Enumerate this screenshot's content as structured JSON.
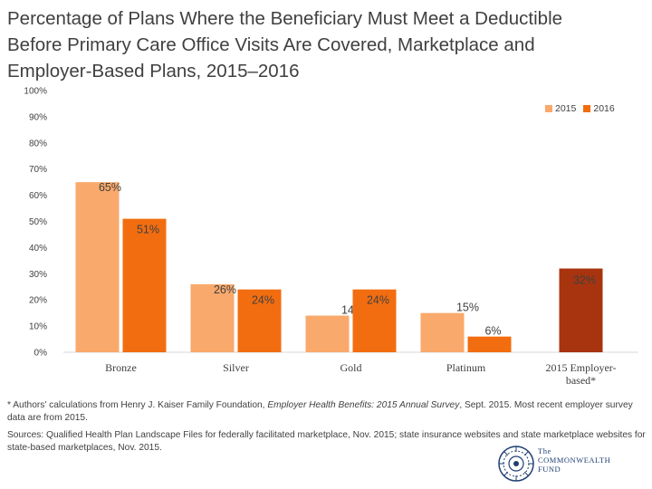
{
  "title": {
    "lines": [
      "Percentage of Plans Where the Beneficiary Must Meet a Deductible",
      "Before Primary Care Office Visits Are Covered, Marketplace and",
      "Employer-Based Plans, 2015–2016"
    ]
  },
  "chart_data": {
    "type": "bar",
    "categories": [
      "Bronze",
      "Silver",
      "Gold",
      "Platinum",
      "2015 Employer-based*"
    ],
    "series": [
      {
        "name": "2015",
        "values": [
          65,
          26,
          14,
          15,
          null
        ],
        "color": "#f9a96b"
      },
      {
        "name": "2016",
        "values": [
          51,
          24,
          24,
          6,
          null
        ],
        "color": "#f26d10"
      },
      {
        "name": "",
        "values": [
          null,
          null,
          null,
          null,
          32
        ],
        "color": "#a8340f"
      }
    ],
    "data_labels": [
      [
        "65%",
        "26%",
        "14%",
        "15%",
        null
      ],
      [
        "51%",
        "24%",
        "24%",
        "6%",
        null
      ],
      [
        null,
        null,
        null,
        null,
        "32%"
      ]
    ],
    "category_labels": [
      [
        "Bronze"
      ],
      [
        "Silver"
      ],
      [
        "Gold"
      ],
      [
        "Platinum"
      ],
      [
        "2015 Employer-",
        "based*"
      ]
    ],
    "ylim": [
      0,
      100
    ],
    "yticks": [
      0,
      10,
      20,
      30,
      40,
      50,
      60,
      70,
      80,
      90,
      100
    ],
    "ytick_labels": [
      "0%",
      "10%",
      "20%",
      "30%",
      "40%",
      "50%",
      "60%",
      "70%",
      "80%",
      "90%",
      "100%"
    ],
    "grid": false,
    "legend_position": "top-right",
    "xlabel": "",
    "ylabel": ""
  },
  "legend": {
    "items": [
      {
        "label": "2015",
        "color": "#f9a96b"
      },
      {
        "label": "2016",
        "color": "#f26d10"
      }
    ]
  },
  "footnote": {
    "prefix": "* Authors' calculations from Henry J. Kaiser Family Foundation, ",
    "italic": "Employer Health Benefits: 2015 Annual Survey",
    "suffix": ", Sept. 2015. Most recent employer survey data are from 2015."
  },
  "sources": {
    "text": "Sources: Qualified Health Plan Landscape Files for federally facilitated marketplace, Nov. 2015; state insurance websites and state marketplace websites for state-based marketplaces, Nov. 2015."
  },
  "logo": {
    "lines": [
      "The",
      "COMMONWEALTH",
      "FUND"
    ],
    "icon": "commonwealth-fund-seal-icon",
    "color": "#1f3f73"
  }
}
